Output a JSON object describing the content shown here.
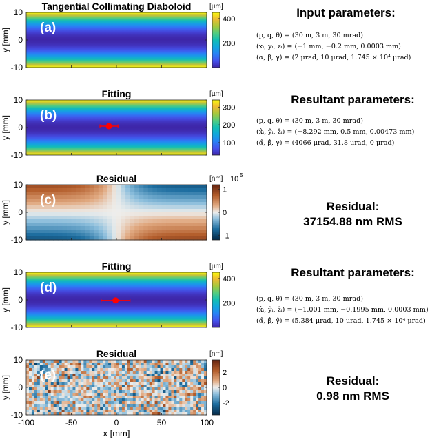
{
  "chart_data": [
    {
      "id": "a",
      "type": "heatmap",
      "panel_label": "(a)",
      "title": "Tangential Collimating Diaboloid",
      "ylabel": "y [mm]",
      "xlim": [
        -100,
        100
      ],
      "ylim": [
        -10,
        10
      ],
      "yticks": [
        -10,
        0,
        10
      ],
      "colormap": "parula",
      "color_range": [
        0,
        450
      ],
      "colorbar_unit": "[µm]",
      "colorbar_ticks": [
        200,
        400
      ],
      "surface": "quadratic in y: minimum at y≈0, largest at y=±10"
    },
    {
      "id": "b",
      "type": "heatmap",
      "panel_label": "(b)",
      "title": "Fitting",
      "ylabel": "y [mm]",
      "xlim": [
        -100,
        100
      ],
      "ylim": [
        -10,
        10
      ],
      "yticks": [
        -10,
        0,
        10
      ],
      "colormap": "parula",
      "color_range": [
        30,
        340
      ],
      "colorbar_unit": "[µm]",
      "colorbar_ticks": [
        100,
        200,
        300
      ],
      "marker": {
        "x": -8.3,
        "y": 0.5,
        "xerr": 10
      }
    },
    {
      "id": "c",
      "type": "heatmap",
      "panel_label": "(c)",
      "title": "Residual",
      "ylabel": "y [mm]",
      "xlim": [
        -100,
        100
      ],
      "ylim": [
        -10,
        10
      ],
      "yticks": [
        -10,
        0,
        10
      ],
      "colormap": "diverging",
      "color_range": [
        -1.2,
        1.2
      ],
      "colorbar_unit": "[nm]",
      "colorbar_exponent": "10",
      "colorbar_exponent_power": "5",
      "colorbar_ticks": [
        -1,
        0,
        1
      ]
    },
    {
      "id": "d",
      "type": "heatmap",
      "panel_label": "(d)",
      "title": "Fitting",
      "ylabel": "y [mm]",
      "xlim": [
        -100,
        100
      ],
      "ylim": [
        -10,
        10
      ],
      "yticks": [
        -10,
        0,
        10
      ],
      "colormap": "parula",
      "color_range": [
        0,
        450
      ],
      "colorbar_unit": "[µm]",
      "colorbar_ticks": [
        200,
        400
      ],
      "marker": {
        "x": -1.0,
        "y": -0.2,
        "xerr": 16
      }
    },
    {
      "id": "e",
      "type": "heatmap",
      "panel_label": "(e)",
      "title": "Residual",
      "ylabel": "y [mm]",
      "xlabel": "x [mm]",
      "xlim": [
        -100,
        100
      ],
      "ylim": [
        -10,
        10
      ],
      "xticks": [
        -100,
        -50,
        0,
        50,
        100
      ],
      "yticks": [
        -10,
        0,
        10
      ],
      "colormap": "diverging",
      "color_range": [
        -3.6,
        3.6
      ],
      "colorbar_unit": "[nm]",
      "colorbar_ticks": [
        -2,
        0,
        2
      ],
      "surface": "random noise"
    }
  ],
  "right_panels": {
    "input_title": "Input parameters:",
    "input_lines": [
      "(p, q, θ) = (30 m, 3 m, 30 mrad)",
      "(xᵢ, yᵢ, zᵢ) = (−1 mm, −0.2 mm, 0.0003 mm)",
      "(α, β, γ) = (2 μrad, 10 μrad, 1.745 × 10⁴ μrad)"
    ],
    "fit1_title": "Resultant parameters:",
    "fit1_lines": [
      "(p, q, θ) = (30 m, 3 m, 30 mrad)",
      "(x̂ᵢ, ŷᵢ, ẑᵢ) = (−8.292 mm, 0.5 mm, 0.00473 mm)",
      "(α̂, β̂, γ) = (4066 μrad, 31.8 μrad, 0 μrad)"
    ],
    "res1_title": "Residual:",
    "res1_value": "37154.88 nm RMS",
    "fit2_title": "Resultant parameters:",
    "fit2_lines": [
      "(p, q, θ) = (30 m, 3 m, 30 mrad)",
      "(x̂ᵢ, ŷᵢ, ẑᵢ) = (−1.001 mm, −0.1995 mm, 0.0003 mm)",
      "(α̂, β̂, γ̂) = (5.384 μrad, 10 μrad, 1.745 × 10⁴ μrad)"
    ],
    "res2_title": "Residual:",
    "res2_value": "0.98 nm RMS"
  }
}
